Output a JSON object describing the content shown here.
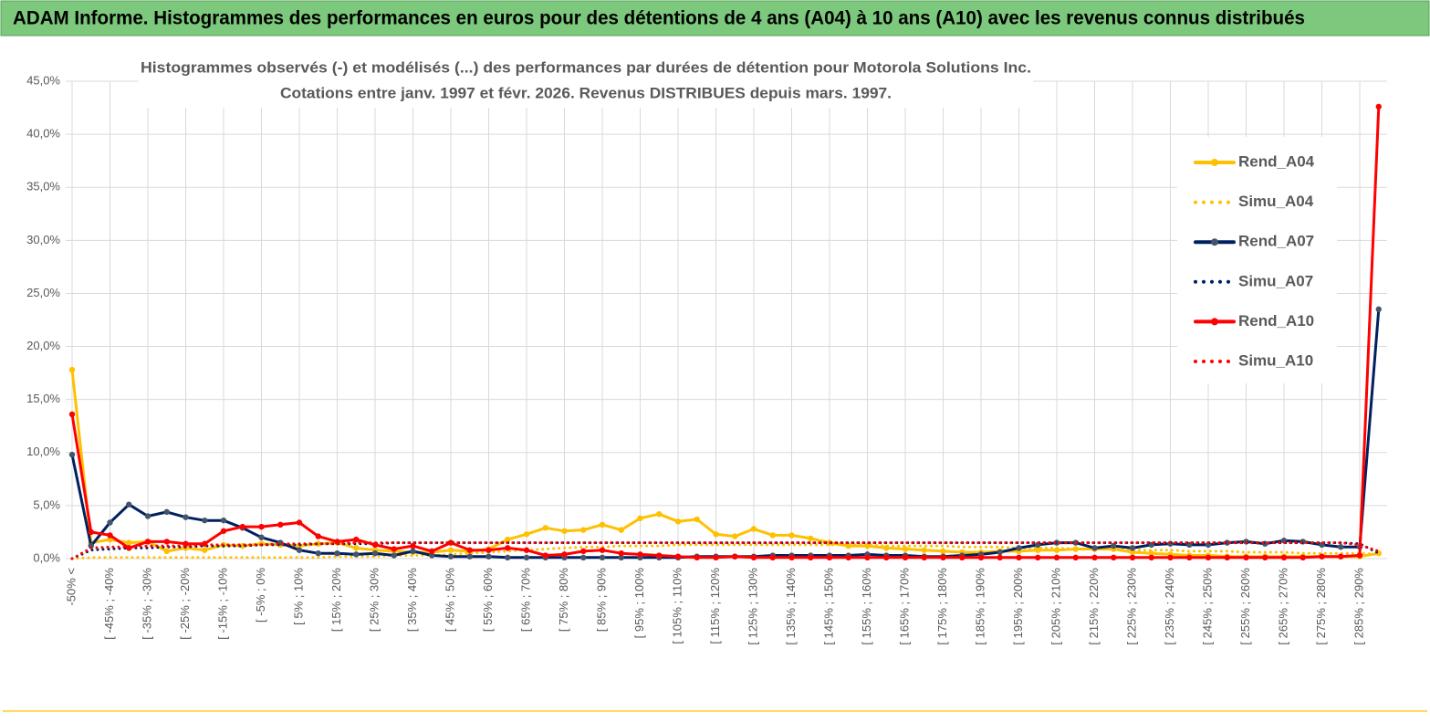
{
  "header": {
    "title": "ADAM Informe. Histogrammes des performances en euros pour des détentions de 4 ans (A04) à 10 ans (A10) avec les revenus connus distribués"
  },
  "chart_data": {
    "type": "line",
    "title": "Histogrammes observés (-)  et modélisés (...) des performances par durées de détention pour Motorola Solutions Inc.",
    "subtitle": "Cotations entre janv. 1997 et févr. 2026. Revenus DISTRIBUES depuis mars. 1997.",
    "categories": [
      "-50% <",
      null,
      "[ -45% ; -40%",
      null,
      "[ -35% ; -30%",
      null,
      "[ -25% ; -20%",
      null,
      "[ -15% ; -10%",
      null,
      "[ -5% ; 0%",
      null,
      "[ 5% ; 10%",
      null,
      "[ 15% ; 20%",
      null,
      "[ 25% ; 30%",
      null,
      "[ 35% ; 40%",
      null,
      "[ 45% ; 50%",
      null,
      "[ 55% ; 60%",
      null,
      "[ 65% ; 70%",
      null,
      "[ 75% ; 80%",
      null,
      "[ 85% ; 90%",
      null,
      "[ 95% ; 100%",
      null,
      "[ 105% ; 110%",
      null,
      "[ 115% ; 120%",
      null,
      "[ 125% ; 130%",
      null,
      "[ 135% ; 140%",
      null,
      "[ 145% ; 150%",
      null,
      "[ 155% ; 160%",
      null,
      "[ 165% ; 170%",
      null,
      "[ 175% ; 180%",
      null,
      "[ 185% ; 190%",
      null,
      "[ 195% ; 200%",
      null,
      "[ 205% ; 210%",
      null,
      "[ 215% ; 220%",
      null,
      "[ 225% ; 230%",
      null,
      "[ 235% ; 240%",
      null,
      "[ 245% ; 250%",
      null,
      "[ 255% ; 260%",
      null,
      "[ 265% ; 270%",
      null,
      "[ 275% ; 280%",
      null,
      "[ 285% ; 290%",
      null
    ],
    "series": [
      {
        "name": "Rend_A04",
        "color": "#ffc000",
        "style": "solid",
        "values": [
          17.8,
          1.5,
          1.8,
          1.5,
          1.6,
          0.7,
          1.0,
          0.8,
          1.3,
          1.2,
          1.4,
          1.3,
          1.2,
          1.4,
          1.5,
          1.0,
          0.8,
          0.7,
          0.6,
          0.6,
          0.8,
          0.7,
          0.9,
          1.8,
          2.3,
          2.9,
          2.6,
          2.7,
          3.2,
          2.7,
          3.8,
          4.2,
          3.5,
          3.7,
          2.3,
          2.1,
          2.8,
          2.2,
          2.2,
          1.9,
          1.5,
          1.2,
          1.2,
          1.0,
          0.9,
          0.8,
          0.7,
          0.6,
          0.6,
          0.7,
          0.7,
          0.8,
          0.8,
          0.9,
          0.9,
          0.9,
          0.6,
          0.5,
          0.4,
          0.3,
          0.3,
          0.2,
          0.2,
          0.2,
          0.2,
          0.2,
          0.2,
          0.2,
          0.2,
          0.5
        ]
      },
      {
        "name": "Simu_A04",
        "color": "#ffc000",
        "style": "dotted",
        "values": [
          0.0,
          0.1,
          0.1,
          0.1,
          0.1,
          0.1,
          0.1,
          0.1,
          0.1,
          0.1,
          0.1,
          0.1,
          0.1,
          0.1,
          0.2,
          0.2,
          0.2,
          0.3,
          0.3,
          0.3,
          0.4,
          0.5,
          0.6,
          0.7,
          0.8,
          0.9,
          1.0,
          1.1,
          1.1,
          1.2,
          1.2,
          1.2,
          1.3,
          1.3,
          1.3,
          1.3,
          1.3,
          1.3,
          1.3,
          1.3,
          1.3,
          1.3,
          1.3,
          1.2,
          1.2,
          1.2,
          1.2,
          1.1,
          1.1,
          1.1,
          1.0,
          1.0,
          1.0,
          0.9,
          0.9,
          0.9,
          0.8,
          0.8,
          0.8,
          0.7,
          0.7,
          0.7,
          0.6,
          0.6,
          0.6,
          0.5,
          0.5,
          0.5,
          0.5,
          0.4
        ]
      },
      {
        "name": "Rend_A07",
        "color": "#002060",
        "style": "solid",
        "values": [
          9.8,
          1.2,
          3.4,
          5.1,
          4.0,
          4.4,
          3.9,
          3.6,
          3.6,
          2.9,
          2.0,
          1.5,
          0.8,
          0.5,
          0.5,
          0.4,
          0.5,
          0.3,
          0.7,
          0.3,
          0.2,
          0.2,
          0.2,
          0.1,
          0.1,
          0.1,
          0.1,
          0.1,
          0.1,
          0.1,
          0.1,
          0.1,
          0.1,
          0.2,
          0.2,
          0.2,
          0.2,
          0.3,
          0.3,
          0.3,
          0.3,
          0.3,
          0.4,
          0.3,
          0.3,
          0.2,
          0.2,
          0.3,
          0.4,
          0.6,
          1.0,
          1.3,
          1.5,
          1.5,
          1.0,
          1.2,
          1.0,
          1.3,
          1.4,
          1.3,
          1.3,
          1.5,
          1.6,
          1.4,
          1.7,
          1.6,
          1.3,
          1.1,
          1.1,
          23.5
        ]
      },
      {
        "name": "Simu_A07",
        "color": "#002060",
        "style": "dotted",
        "values": [
          0.0,
          0.8,
          0.9,
          1.0,
          1.0,
          1.1,
          1.1,
          1.2,
          1.2,
          1.2,
          1.3,
          1.3,
          1.3,
          1.4,
          1.4,
          1.4,
          1.4,
          1.5,
          1.5,
          1.5,
          1.5,
          1.5,
          1.5,
          1.5,
          1.5,
          1.5,
          1.5,
          1.5,
          1.5,
          1.5,
          1.5,
          1.5,
          1.5,
          1.5,
          1.5,
          1.5,
          1.5,
          1.5,
          1.5,
          1.5,
          1.5,
          1.5,
          1.5,
          1.5,
          1.5,
          1.5,
          1.5,
          1.5,
          1.5,
          1.5,
          1.5,
          1.5,
          1.5,
          1.5,
          1.5,
          1.5,
          1.5,
          1.5,
          1.5,
          1.5,
          1.5,
          1.5,
          1.5,
          1.5,
          1.5,
          1.5,
          1.5,
          1.5,
          1.4,
          0.5
        ]
      },
      {
        "name": "Rend_A10",
        "color": "#ff0000",
        "style": "solid",
        "values": [
          13.6,
          2.5,
          2.2,
          1.0,
          1.6,
          1.6,
          1.4,
          1.4,
          2.6,
          3.0,
          3.0,
          3.2,
          3.4,
          2.1,
          1.6,
          1.8,
          1.3,
          0.9,
          1.2,
          0.7,
          1.5,
          0.8,
          0.8,
          1.0,
          0.8,
          0.3,
          0.4,
          0.7,
          0.8,
          0.5,
          0.4,
          0.3,
          0.2,
          0.1,
          0.1,
          0.2,
          0.1,
          0.1,
          0.1,
          0.1,
          0.1,
          0.1,
          0.1,
          0.1,
          0.1,
          0.1,
          0.1,
          0.1,
          0.1,
          0.1,
          0.1,
          0.1,
          0.1,
          0.1,
          0.1,
          0.1,
          0.1,
          0.1,
          0.1,
          0.1,
          0.1,
          0.1,
          0.1,
          0.1,
          0.1,
          0.1,
          0.2,
          0.2,
          0.3,
          42.6
        ]
      },
      {
        "name": "Simu_A10",
        "color": "#ff0000",
        "style": "dotted",
        "values": [
          0.0,
          1.0,
          1.1,
          1.1,
          1.2,
          1.2,
          1.2,
          1.3,
          1.3,
          1.3,
          1.3,
          1.4,
          1.4,
          1.4,
          1.4,
          1.5,
          1.5,
          1.5,
          1.5,
          1.5,
          1.5,
          1.5,
          1.5,
          1.5,
          1.5,
          1.5,
          1.5,
          1.5,
          1.5,
          1.5,
          1.5,
          1.5,
          1.5,
          1.5,
          1.5,
          1.5,
          1.5,
          1.5,
          1.5,
          1.5,
          1.5,
          1.5,
          1.5,
          1.5,
          1.5,
          1.5,
          1.5,
          1.5,
          1.5,
          1.5,
          1.5,
          1.5,
          1.5,
          1.5,
          1.5,
          1.5,
          1.5,
          1.5,
          1.5,
          1.5,
          1.5,
          1.5,
          1.5,
          1.5,
          1.5,
          1.5,
          1.5,
          1.5,
          1.3,
          0.7
        ]
      }
    ],
    "ylim": [
      0,
      45
    ],
    "yticks": [
      {
        "value": 0,
        "label": "0,0%"
      },
      {
        "value": 5,
        "label": "5,0%"
      },
      {
        "value": 10,
        "label": "10,0%"
      },
      {
        "value": 15,
        "label": "15,0%"
      },
      {
        "value": 20,
        "label": "20,0%"
      },
      {
        "value": 25,
        "label": "25,0%"
      },
      {
        "value": 30,
        "label": "30,0%"
      },
      {
        "value": 35,
        "label": "35,0%"
      },
      {
        "value": 40,
        "label": "40,0%"
      },
      {
        "value": 45,
        "label": "45,0%"
      }
    ],
    "grid": true,
    "legend": "right"
  }
}
